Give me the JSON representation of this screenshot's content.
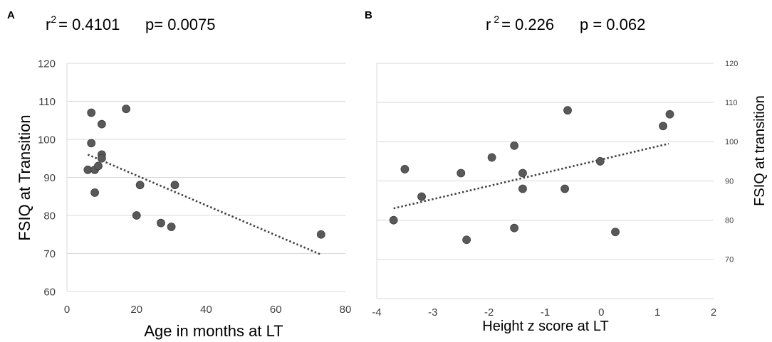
{
  "chart_data": [
    {
      "type": "scatter",
      "panel": "A",
      "stats": {
        "r2_label": "r",
        "r2_sup": "2",
        "r2_value": "= 0.4101",
        "p_text": "p= 0.0075"
      },
      "xlabel": "Age in months at LT",
      "ylabel": "FSIQ at Transition",
      "xlim": [
        0,
        80
      ],
      "ylim": [
        60,
        120
      ],
      "xticks": [
        0,
        20,
        40,
        60,
        80
      ],
      "yticks": [
        60,
        70,
        80,
        90,
        100,
        110,
        120
      ],
      "grid": true,
      "points": [
        {
          "x": 6,
          "y": 92
        },
        {
          "x": 7,
          "y": 107
        },
        {
          "x": 7,
          "y": 99
        },
        {
          "x": 8,
          "y": 92
        },
        {
          "x": 8,
          "y": 86
        },
        {
          "x": 9,
          "y": 93
        },
        {
          "x": 10,
          "y": 104
        },
        {
          "x": 10,
          "y": 96
        },
        {
          "x": 10,
          "y": 95
        },
        {
          "x": 17,
          "y": 108
        },
        {
          "x": 20,
          "y": 80
        },
        {
          "x": 21,
          "y": 88
        },
        {
          "x": 27,
          "y": 78
        },
        {
          "x": 30,
          "y": 77
        },
        {
          "x": 31,
          "y": 88
        },
        {
          "x": 73,
          "y": 75
        }
      ],
      "trendline": {
        "x": [
          6,
          73
        ],
        "y": [
          96,
          69.7
        ]
      }
    },
    {
      "type": "scatter",
      "panel": "B",
      "stats": {
        "r2_label": "r",
        "r2_sup": "2",
        "r2_value": "= 0.226",
        "p_text": "p = 0.062"
      },
      "xlabel": "Height z score at LT",
      "ylabel": "FSIQ at transition",
      "xlim": [
        -4,
        2
      ],
      "ylim": [
        60,
        120
      ],
      "xticks": [
        -4,
        -3,
        -2,
        -1,
        0,
        1,
        2
      ],
      "yticks": [
        70,
        80,
        90,
        100,
        110,
        120
      ],
      "grid": true,
      "points": [
        {
          "x": -3.7,
          "y": 80
        },
        {
          "x": -3.5,
          "y": 93
        },
        {
          "x": -3.2,
          "y": 86
        },
        {
          "x": -2.5,
          "y": 92
        },
        {
          "x": -2.4,
          "y": 75
        },
        {
          "x": -1.95,
          "y": 96
        },
        {
          "x": -1.55,
          "y": 99
        },
        {
          "x": -1.55,
          "y": 78
        },
        {
          "x": -1.4,
          "y": 92
        },
        {
          "x": -1.4,
          "y": 88
        },
        {
          "x": -0.65,
          "y": 88
        },
        {
          "x": -0.6,
          "y": 108
        },
        {
          "x": -0.02,
          "y": 95
        },
        {
          "x": 0.25,
          "y": 77
        },
        {
          "x": 1.1,
          "y": 104
        },
        {
          "x": 1.22,
          "y": 107
        }
      ],
      "trendline": {
        "x": [
          -3.7,
          1.2
        ],
        "y": [
          83,
          99.5
        ]
      }
    }
  ]
}
